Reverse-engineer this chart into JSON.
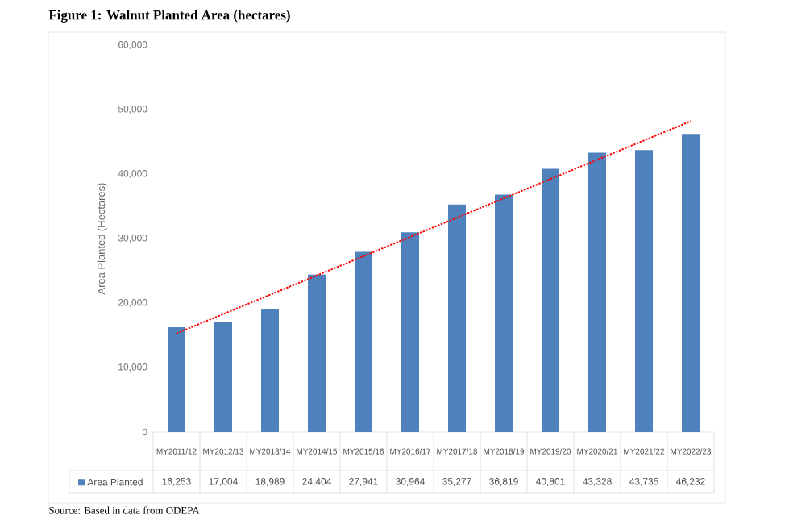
{
  "chart_data": {
    "type": "bar",
    "title": "Figure 1: Walnut Planted Area (hectares)",
    "ylabel": "Area Planted (Hectares)",
    "categories": [
      "MY2011/12",
      "MY2012/13",
      "MY2013/14",
      "MY2014/15",
      "MY2015/16",
      "MY2016/17",
      "MY2017/18",
      "MY2018/19",
      "MY2019/20",
      "MY2020/21",
      "MY2021/22",
      "MY2022/23"
    ],
    "series": [
      {
        "name": "Area Planted",
        "color": "#4f81bd",
        "values": [
          16253,
          17004,
          18989,
          24404,
          27941,
          30964,
          35277,
          36819,
          40801,
          43328,
          43735,
          46232
        ],
        "value_labels": [
          "16,253",
          "17,004",
          "18,989",
          "24,404",
          "27,941",
          "30,964",
          "35,277",
          "36,819",
          "40,801",
          "43,328",
          "43,735",
          "46,232"
        ]
      },
      {
        "type": "line",
        "color": "#ff0000",
        "line_style": "dotted",
        "marker": "none",
        "x": [
          "MY2011/12",
          "MY2022/23"
        ],
        "values": [
          15300,
          48200
        ]
      }
    ],
    "ylim": [
      0,
      60000
    ],
    "yticks": [
      0,
      {
        "value": 10000,
        "label": "10,000"
      },
      {
        "value": 20000,
        "label": "20,000"
      },
      {
        "value": 30000,
        "label": "30,000"
      },
      {
        "value": 40000,
        "label": "40,000"
      },
      {
        "value": 50000,
        "label": "50,000"
      },
      {
        "value": 60000,
        "label": "60,000"
      }
    ],
    "legend": "bottom",
    "annotations": [
      "Source: Based in data from ODEPA"
    ]
  }
}
